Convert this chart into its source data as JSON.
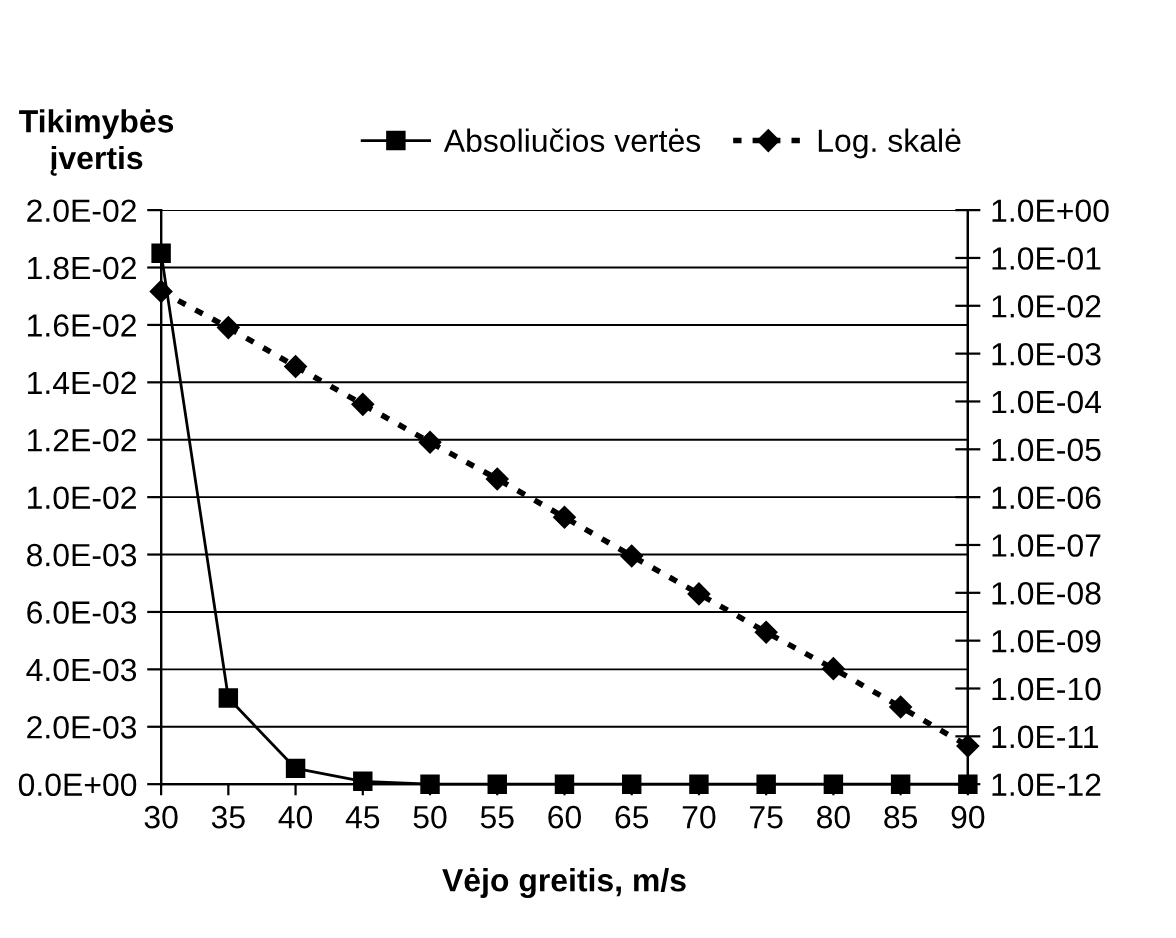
{
  "chart_data": {
    "type": "line",
    "xlabel": "Vėjo greitis, m/s",
    "ylabel": "Tikimybės\nįvertis",
    "x": [
      30,
      35,
      40,
      45,
      50,
      55,
      60,
      65,
      70,
      75,
      80,
      85,
      90
    ],
    "series": [
      {
        "name": "Absoliučios vertės",
        "color": "#000000",
        "marker": "square",
        "line_style": "solid",
        "values": [
          0.0185,
          0.003,
          0.00055,
          0.0001,
          0,
          0,
          0,
          0,
          0,
          0,
          0,
          0,
          0
        ]
      },
      {
        "name": "Log. skalė",
        "color": "#000000",
        "marker": "diamond",
        "line_style": "dotted",
        "axis": "y2",
        "values": [
          0.02,
          0.0035,
          0.00054,
          8.7e-05,
          1.4e-05,
          2.4e-06,
          3.8e-07,
          5.9e-08,
          9.5e-09,
          1.5e-09,
          2.6e-10,
          4.1e-11,
          6.3e-12
        ]
      }
    ],
    "xlim": [
      30,
      90
    ],
    "xticks": [
      30,
      35,
      40,
      45,
      50,
      55,
      60,
      65,
      70,
      75,
      80,
      85,
      90
    ],
    "ylim": [
      0,
      0.02
    ],
    "yticks": [
      {
        "value": 0,
        "label": "0.0E+00"
      },
      {
        "value": 0.002,
        "label": "2.0E-03"
      },
      {
        "value": 0.004,
        "label": "4.0E-03"
      },
      {
        "value": 0.006,
        "label": "6.0E-03"
      },
      {
        "value": 0.008,
        "label": "8.0E-03"
      },
      {
        "value": 0.01,
        "label": "1.0E-02"
      },
      {
        "value": 0.012,
        "label": "1.2E-02"
      },
      {
        "value": 0.014,
        "label": "1.4E-02"
      },
      {
        "value": 0.016,
        "label": "1.6E-02"
      },
      {
        "value": 0.018,
        "label": "1.8E-02"
      },
      {
        "value": 0.02,
        "label": "2.0E-02"
      }
    ],
    "log": "y2",
    "y2lim": [
      1e-12,
      1
    ],
    "y2ticks": [
      {
        "value": 1e-12,
        "label": "1.0E-12"
      },
      {
        "value": 1e-11,
        "label": "1.0E-11"
      },
      {
        "value": 1e-10,
        "label": "1.0E-10"
      },
      {
        "value": 1e-09,
        "label": "1.0E-09"
      },
      {
        "value": 1e-08,
        "label": "1.0E-08"
      },
      {
        "value": 1e-07,
        "label": "1.0E-07"
      },
      {
        "value": 1e-06,
        "label": "1.0E-06"
      },
      {
        "value": 1e-05,
        "label": "1.0E-05"
      },
      {
        "value": 0.0001,
        "label": "1.0E-04"
      },
      {
        "value": 0.001,
        "label": "1.0E-03"
      },
      {
        "value": 0.01,
        "label": "1.0E-02"
      },
      {
        "value": 0.1,
        "label": "1.0E-01"
      },
      {
        "value": 1,
        "label": "1.0E+00"
      }
    ],
    "grid": "y",
    "legend": "top"
  }
}
